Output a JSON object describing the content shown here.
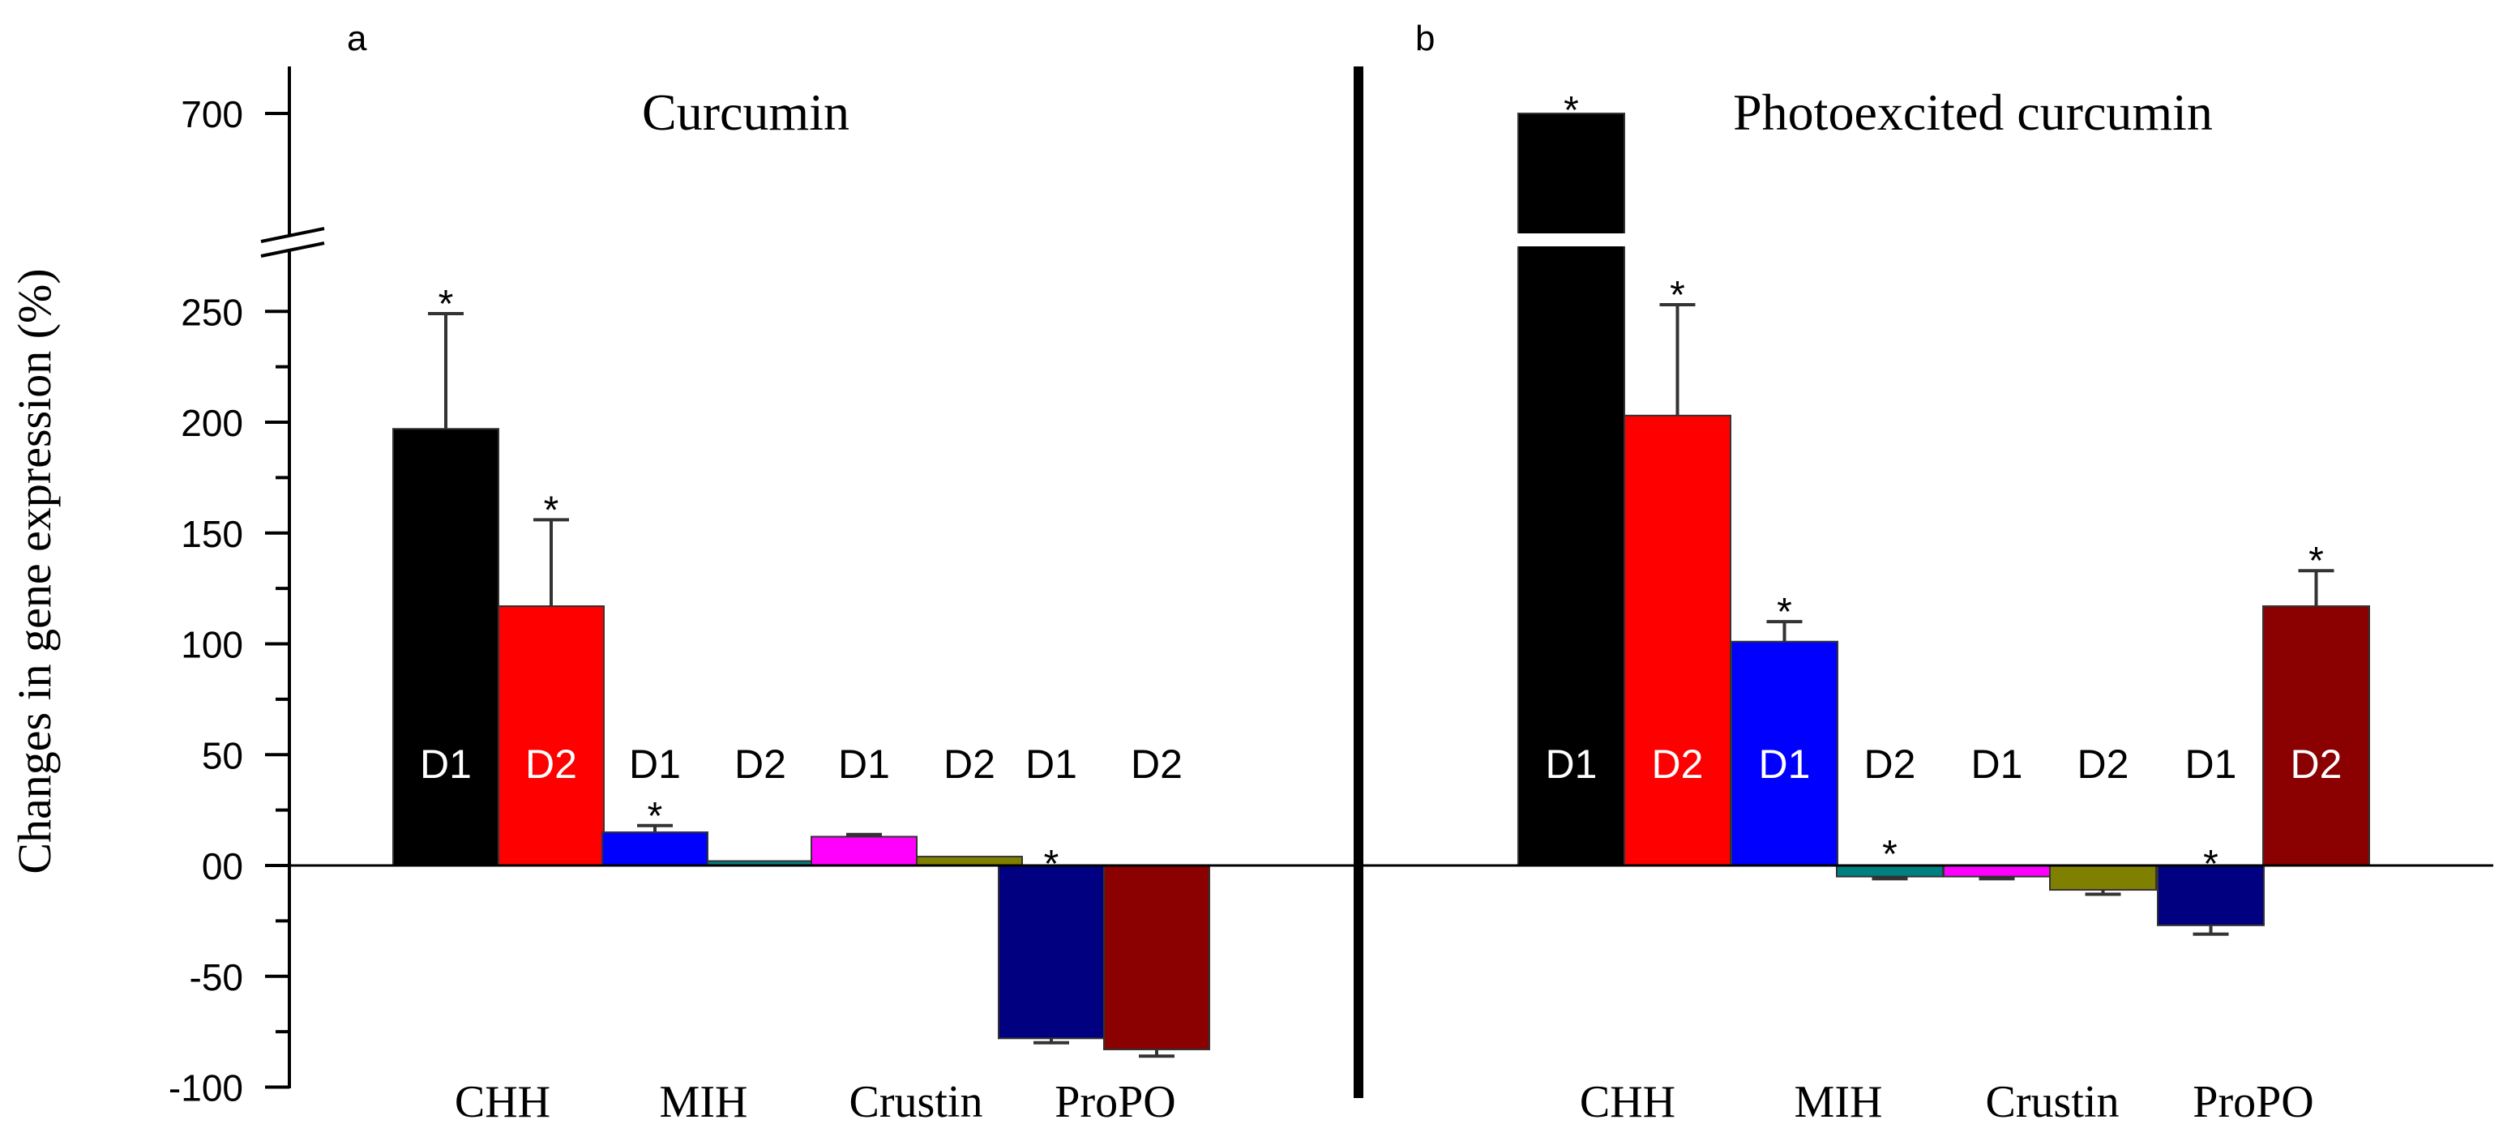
{
  "y_axis_label": "Changes in gene expression (%)",
  "y_ticks": [
    "-100",
    "-50",
    "00",
    "50",
    "100",
    "150",
    "200",
    "250",
    "700"
  ],
  "colors": {
    "CHH_D1": "#000000",
    "CHH_D2": "#ff0000",
    "MIH_D1": "#0000ff",
    "MIH_D2": "#008080",
    "Crustin_D1": "#ff00ff",
    "Crustin_D2": "#808000",
    "ProPO_D1": "#000080",
    "ProPO_D2": "#8b0000"
  },
  "chart_data": [
    {
      "panel": "a",
      "type": "bar",
      "title": "Curcumin",
      "ylabel": "Changes in gene expression (%)",
      "ylim": [
        -100,
        700
      ],
      "axis_break": [
        260,
        680
      ],
      "categories": [
        "CHH",
        "MIH",
        "Crustin",
        "ProPO"
      ],
      "series": [
        {
          "name": "D1",
          "values": [
            197,
            15,
            13,
            -78
          ],
          "errors": [
            52,
            3,
            1,
            2
          ],
          "significant": [
            true,
            true,
            false,
            true
          ]
        },
        {
          "name": "D2",
          "values": [
            117,
            2,
            4,
            -83
          ],
          "errors": [
            39,
            0,
            0,
            3
          ],
          "significant": [
            true,
            false,
            false,
            false
          ]
        }
      ]
    },
    {
      "panel": "b",
      "type": "bar",
      "title": "Photoexcited curcumin",
      "ylabel": "Changes in gene expression (%)",
      "ylim": [
        -100,
        700
      ],
      "axis_break": [
        260,
        680
      ],
      "categories": [
        "CHH",
        "MIH",
        "Crustin",
        "ProPO"
      ],
      "series": [
        {
          "name": "D1",
          "values": [
            660,
            101,
            -5,
            -27
          ],
          "errors": [
            0,
            9,
            1,
            4
          ],
          "significant": [
            true,
            true,
            false,
            true
          ]
        },
        {
          "name": "D2",
          "values": [
            203,
            -5,
            -11,
            117
          ],
          "errors": [
            50,
            1,
            2,
            16
          ],
          "significant": [
            true,
            true,
            false,
            true
          ]
        }
      ]
    }
  ]
}
